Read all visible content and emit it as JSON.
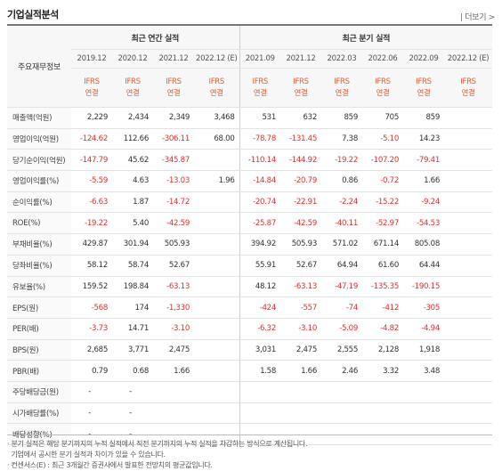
{
  "title": "기업실적분석",
  "more_label": "더보기",
  "header": {
    "corner_label": "주요재무정보",
    "annual_label": "최근 연간 실적",
    "quarterly_label": "최근 분기 실적",
    "annual_periods": [
      "2019.12",
      "2020.12",
      "2021.12",
      "2022.12 (E)"
    ],
    "quarterly_periods": [
      "2021.09",
      "2021.12",
      "2022.03",
      "2022.06",
      "2022.09",
      "2022.12 (E)"
    ],
    "std_label_top": "IFRS",
    "std_label_bottom": "연결"
  },
  "rows": [
    {
      "label": "매출액(억원)",
      "values": [
        "2,229",
        "2,434",
        "2,349",
        "3,468",
        "531",
        "632",
        "859",
        "705",
        "859",
        ""
      ]
    },
    {
      "label": "영업이익(억원)",
      "values": [
        "-124.62",
        "112.66",
        "-306.11",
        "68.00",
        "-78.78",
        "-131.45",
        "7.38",
        "-5.10",
        "14.23",
        ""
      ]
    },
    {
      "label": "당기순이익(억원)",
      "values": [
        "-147.79",
        "45.62",
        "-345.87",
        "",
        "-110.14",
        "-144.92",
        "-19.22",
        "-107.20",
        "-79.41",
        ""
      ]
    },
    {
      "label": "영업이익률(%)",
      "values": [
        "-5.59",
        "4.63",
        "-13.03",
        "1.96",
        "-14.84",
        "-20.79",
        "0.86",
        "-0.72",
        "1.66",
        ""
      ]
    },
    {
      "label": "순이익률(%)",
      "values": [
        "-6.63",
        "1.87",
        "-14.72",
        "",
        "-20.74",
        "-22.91",
        "-2.24",
        "-15.22",
        "-9.24",
        ""
      ]
    },
    {
      "label": "ROE(%)",
      "values": [
        "-19.22",
        "5.40",
        "-42.59",
        "",
        "-25.87",
        "-42.59",
        "-40.11",
        "-52.97",
        "-54.53",
        ""
      ]
    },
    {
      "label": "부채비율(%)",
      "values": [
        "429.87",
        "301.94",
        "505.93",
        "",
        "394.92",
        "505.93",
        "571.02",
        "671.14",
        "805.08",
        ""
      ]
    },
    {
      "label": "당좌비율(%)",
      "values": [
        "58.12",
        "58.74",
        "52.67",
        "",
        "55.91",
        "52.67",
        "64.94",
        "61.60",
        "64.44",
        ""
      ]
    },
    {
      "label": "유보율(%)",
      "values": [
        "159.52",
        "198.84",
        "-63.13",
        "",
        "48.12",
        "-63.13",
        "-47.19",
        "-135.35",
        "-190.15",
        ""
      ]
    },
    {
      "label": "EPS(원)",
      "values": [
        "-568",
        "174",
        "-1,330",
        "",
        "-424",
        "-557",
        "-74",
        "-412",
        "-305",
        ""
      ]
    },
    {
      "label": "PER(배)",
      "values": [
        "-3.73",
        "14.71",
        "-3.10",
        "",
        "-6.32",
        "-3.10",
        "-5.09",
        "-4.82",
        "-4.94",
        ""
      ]
    },
    {
      "label": "BPS(원)",
      "values": [
        "2,685",
        "3,771",
        "2,475",
        "",
        "3,031",
        "2,475",
        "2,555",
        "2,128",
        "1,918",
        ""
      ]
    },
    {
      "label": "PBR(배)",
      "values": [
        "0.79",
        "0.68",
        "1.66",
        "",
        "1.58",
        "1.66",
        "2.46",
        "3.32",
        "3.48",
        ""
      ]
    },
    {
      "label": "주당배당금(원)",
      "values": [
        "-",
        "-",
        "",
        "",
        "",
        "",
        "",
        "",
        "",
        ""
      ]
    },
    {
      "label": "시가배당률(%)",
      "values": [
        "-",
        "-",
        "",
        "",
        "",
        "",
        "",
        "",
        "",
        ""
      ]
    },
    {
      "label": "배당성향(%)",
      "values": [
        "-",
        "-",
        "",
        "",
        "",
        "",
        "",
        "",
        "",
        ""
      ]
    }
  ],
  "notes": [
    "분기 실적은 해당 분기까지의 누적 실적에서 직전 분기까지의 누적 실적을 차감하는 방식으로 계산됩니다.",
    "기업에서 공시한 분기 실적과 차이가 있을 수 있습니다.",
    "컨센서스(E) : 최근 3개월간 증권사에서 발표한 전망치의 평균값입니다."
  ],
  "colors": {
    "negative": "#e02f2f",
    "ifrs": "#e25c32",
    "estimate": "#e25c32"
  }
}
